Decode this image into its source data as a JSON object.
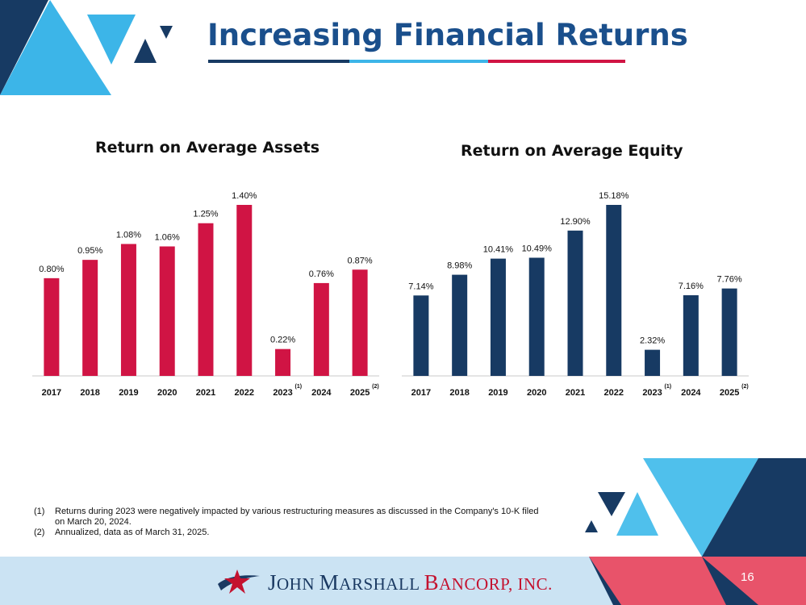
{
  "slide": {
    "title": "Increasing Financial Returns",
    "page_number": "16",
    "colors": {
      "navy": "#173a63",
      "crimson": "#d01444",
      "sky": "#3cb5e8",
      "band": "#cbe3f3"
    }
  },
  "chart_data": [
    {
      "type": "bar",
      "title": "Return on Average Assets",
      "categories": [
        "2017",
        "2018",
        "2019",
        "2020",
        "2021",
        "2022",
        "2023",
        "2024",
        "2025"
      ],
      "category_notes": [
        "",
        "",
        "",
        "",
        "",
        "",
        "(1)",
        "",
        "(2)"
      ],
      "values": [
        0.8,
        0.95,
        1.08,
        1.06,
        1.25,
        1.4,
        0.22,
        0.76,
        0.87
      ],
      "value_labels": [
        "0.80%",
        "0.95%",
        "1.08%",
        "1.06%",
        "1.25%",
        "1.40%",
        "0.22%",
        "0.76%",
        "0.87%"
      ],
      "xlabel": "",
      "ylabel": "",
      "ylim": [
        0,
        1.4
      ],
      "color": "#d01444",
      "grid": false,
      "legend": "none"
    },
    {
      "type": "bar",
      "title": "Return on Average Equity",
      "categories": [
        "2017",
        "2018",
        "2019",
        "2020",
        "2021",
        "2022",
        "2023",
        "2024",
        "2025"
      ],
      "category_notes": [
        "",
        "",
        "",
        "",
        "",
        "",
        "(1)",
        "",
        "(2)"
      ],
      "values": [
        7.14,
        8.98,
        10.41,
        10.49,
        12.9,
        15.18,
        2.32,
        7.16,
        7.76
      ],
      "value_labels": [
        "7.14%",
        "8.98%",
        "10.41%",
        "10.49%",
        "12.90%",
        "15.18%",
        "2.32%",
        "7.16%",
        "7.76%"
      ],
      "xlabel": "",
      "ylabel": "",
      "ylim": [
        0,
        15.18
      ],
      "color": "#173a63",
      "grid": false,
      "legend": "none"
    }
  ],
  "footnotes": [
    {
      "num": "(1)",
      "text": "Returns during 2023 were negatively impacted by various restructuring measures as discussed in the Company's 10-K filed on March 20, 2024."
    },
    {
      "num": "(2)",
      "text": "Annualized, data as of March 31, 2025."
    }
  ],
  "logo": {
    "icon": "star-swoosh-icon",
    "initial_1": "J",
    "rest_1": "OHN ",
    "initial_2": "M",
    "rest_2": "ARSHALL ",
    "initial_3": "B",
    "rest_3": "ANCORP, INC."
  }
}
